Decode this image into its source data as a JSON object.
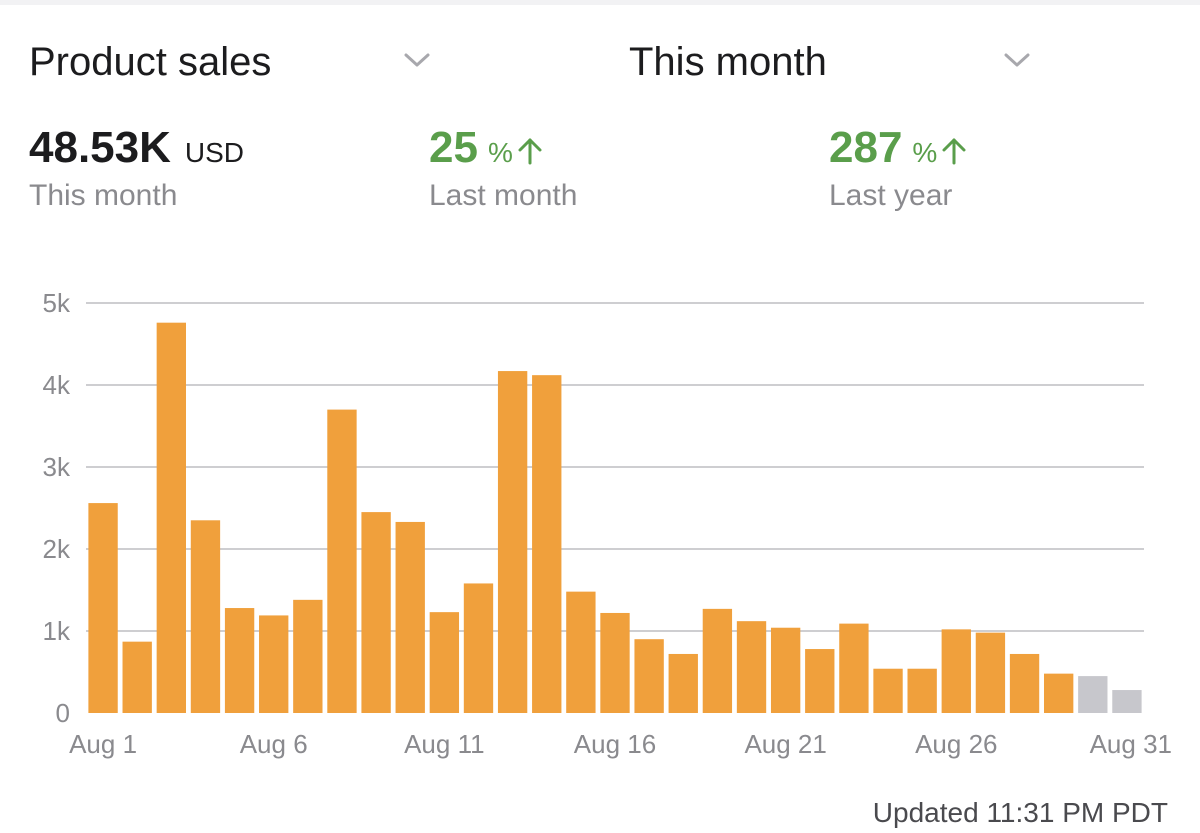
{
  "header": {
    "metric_label": "Product sales",
    "period_label": "This month"
  },
  "stats": {
    "total": {
      "value": "48.53K",
      "unit": "USD",
      "caption": "This month"
    },
    "vs_month": {
      "value": "25",
      "unit": "%",
      "caption": "Last month"
    },
    "vs_year": {
      "value": "287",
      "unit": "%",
      "caption": "Last year"
    }
  },
  "footer": {
    "updated": "Updated 11:31 PM PDT"
  },
  "colors": {
    "bar": "#f0a03c",
    "future_bar": "#c7c7cc",
    "positive": "#5a9e4b",
    "grid": "#bdbdc2"
  },
  "icons": {
    "dropdown": "chevron-down-icon",
    "trend": "arrow-up-icon"
  },
  "chart_data": {
    "type": "bar",
    "ylim": [
      0,
      5000
    ],
    "yticks": [
      0,
      1000,
      2000,
      3000,
      4000,
      5000
    ],
    "ytick_labels": [
      "0",
      "1k",
      "2k",
      "3k",
      "4k",
      "5k"
    ],
    "xtick_labels": [
      {
        "index": 0,
        "label": "Aug 1"
      },
      {
        "index": 5,
        "label": "Aug 6"
      },
      {
        "index": 10,
        "label": "Aug 11"
      },
      {
        "index": 15,
        "label": "Aug 16"
      },
      {
        "index": 20,
        "label": "Aug 21"
      },
      {
        "index": 25,
        "label": "Aug 26"
      },
      {
        "index": 30,
        "label": "Aug 31"
      }
    ],
    "categories": [
      "Aug 1",
      "Aug 2",
      "Aug 3",
      "Aug 4",
      "Aug 5",
      "Aug 6",
      "Aug 7",
      "Aug 8",
      "Aug 9",
      "Aug 10",
      "Aug 11",
      "Aug 12",
      "Aug 13",
      "Aug 14",
      "Aug 15",
      "Aug 16",
      "Aug 17",
      "Aug 18",
      "Aug 19",
      "Aug 20",
      "Aug 21",
      "Aug 22",
      "Aug 23",
      "Aug 24",
      "Aug 25",
      "Aug 26",
      "Aug 27",
      "Aug 28",
      "Aug 29",
      "Aug 30",
      "Aug 31"
    ],
    "values": [
      2560,
      870,
      4760,
      2350,
      1280,
      1190,
      1380,
      3700,
      2450,
      2330,
      1230,
      1580,
      4170,
      4120,
      1480,
      1220,
      900,
      720,
      1270,
      1120,
      1040,
      780,
      1090,
      540,
      540,
      1020,
      980,
      720,
      480,
      450,
      280
    ],
    "projected": [
      false,
      false,
      false,
      false,
      false,
      false,
      false,
      false,
      false,
      false,
      false,
      false,
      false,
      false,
      false,
      false,
      false,
      false,
      false,
      false,
      false,
      false,
      false,
      false,
      false,
      false,
      false,
      false,
      false,
      true,
      true
    ]
  }
}
